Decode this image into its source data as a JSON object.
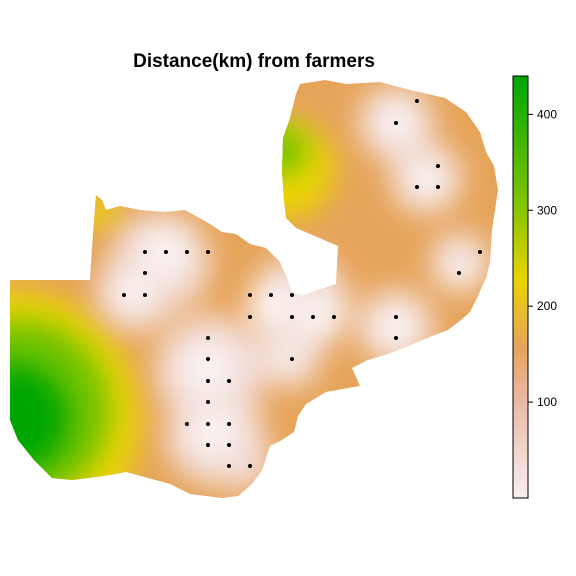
{
  "map": {
    "title": "Distance(km) from  farmers",
    "legend": {
      "ticks": [
        100,
        200,
        300,
        400
      ],
      "range": [
        0,
        440
      ],
      "palette": "terrain-reversed",
      "colors": [
        "#f7f0f0",
        "#ebb8a6",
        "#e6a45a",
        "#e9d400",
        "#6fc300",
        "#00a600"
      ]
    },
    "marker_color": "#000000"
  }
}
